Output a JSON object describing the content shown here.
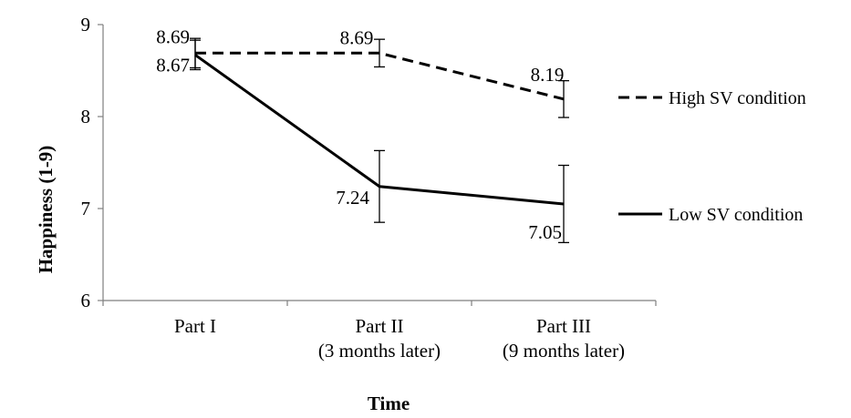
{
  "chart_data": {
    "type": "line",
    "title": "",
    "xlabel": "Time",
    "ylabel": "Happiness (1-9)",
    "ylim": [
      6,
      9
    ],
    "yticks": [
      6,
      7,
      8,
      9
    ],
    "grid": false,
    "legend_position": "right",
    "categories": [
      [
        "Part I"
      ],
      [
        "Part II",
        "(3 months later)"
      ],
      [
        "Part III",
        "(9 months later)"
      ]
    ],
    "series": [
      {
        "name": "High SV condition",
        "style": "dashed",
        "values": [
          8.69,
          8.69,
          8.19
        ],
        "labels": [
          "8.69",
          "8.69",
          "8.19"
        ],
        "error": [
          0.16,
          0.15,
          0.2
        ]
      },
      {
        "name": "Low SV condition",
        "style": "solid",
        "values": [
          8.67,
          7.24,
          7.05
        ],
        "labels": [
          "8.67",
          "7.24",
          "7.05"
        ],
        "error": [
          0.16,
          0.39,
          0.42
        ]
      }
    ],
    "colors": {
      "line": "#000000",
      "axis": "#7f7f7f"
    }
  }
}
